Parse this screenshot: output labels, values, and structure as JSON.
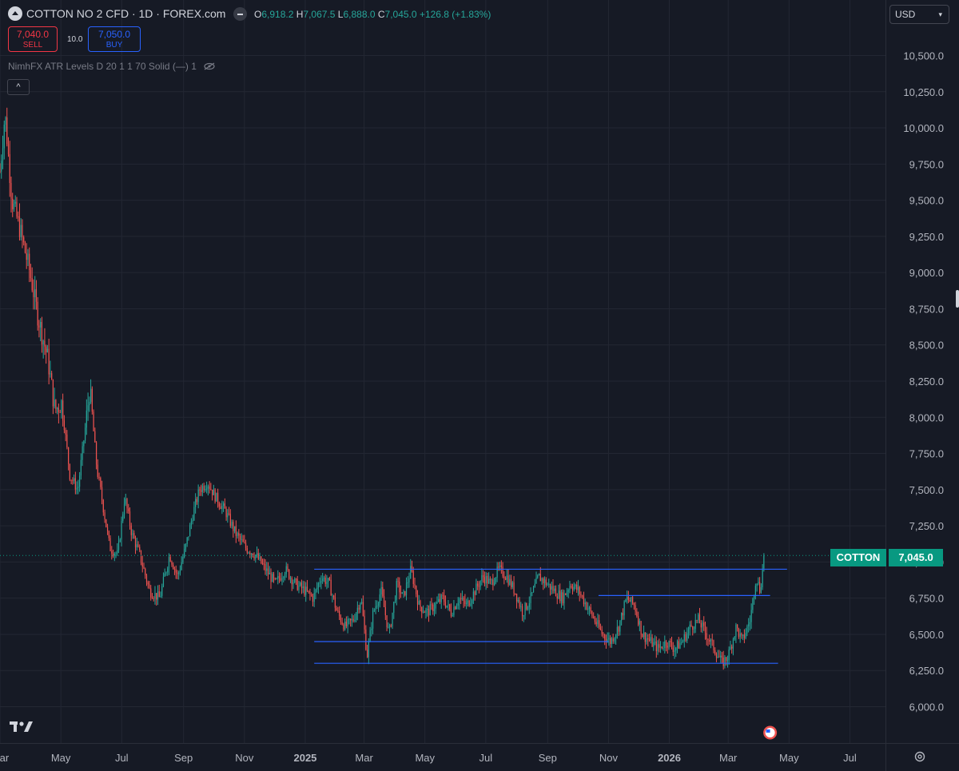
{
  "header": {
    "symbol_title": "COTTON NO 2 CFD · 1D · FOREX.com",
    "ohlc": [
      {
        "key": "O",
        "value": "6,918.2"
      },
      {
        "key": "H",
        "value": "7,067.5"
      },
      {
        "key": "L",
        "value": "6,888.0"
      },
      {
        "key": "C",
        "value": "7,045.0"
      },
      {
        "key": "",
        "value": "+126.8 (+1.83%)"
      }
    ],
    "sell_price": "7,040.0",
    "sell_label": "SELL",
    "spread": "10.0",
    "buy_price": "7,050.0",
    "buy_label": "BUY",
    "indicator_legend": "NimhFX ATR Levels D 20 1 1 70 Solid (—) 1",
    "collapse_icon": "^",
    "currency": "USD"
  },
  "price_label": {
    "name": "COTTON",
    "value": "7,045.0"
  },
  "colors": {
    "background": "#161a25",
    "grid": "#232733",
    "up": "#26a69a",
    "down": "#ef5350",
    "level_line": "#2962ff",
    "last_price": "#089981"
  },
  "chart_data": {
    "type": "candlestick",
    "y_ticks": [
      "6,000.0",
      "6,250.0",
      "6,500.0",
      "6,750.0",
      "7,000.0",
      "7,250.0",
      "7,500.0",
      "7,750.0",
      "8,000.0",
      "8,250.0",
      "8,500.0",
      "8,750.0",
      "9,000.0",
      "9,250.0",
      "9,500.0",
      "9,750.0",
      "10,000.0",
      "10,250.0",
      "10,500.0"
    ],
    "y_tick_values": [
      6000,
      6250,
      6500,
      6750,
      7000,
      7250,
      7500,
      7750,
      8000,
      8250,
      8500,
      8750,
      9000,
      9250,
      9500,
      9750,
      10000,
      10250,
      10500
    ],
    "ylim": [
      5800,
      10650
    ],
    "x_ticks": [
      {
        "label": "Mar",
        "bold": false,
        "day": 0
      },
      {
        "label": "May",
        "bold": false,
        "day": 61
      },
      {
        "label": "Jul",
        "bold": false,
        "day": 122
      },
      {
        "label": "Sep",
        "bold": false,
        "day": 184
      },
      {
        "label": "Nov",
        "bold": false,
        "day": 245
      },
      {
        "label": "2025",
        "bold": true,
        "day": 306
      },
      {
        "label": "Mar",
        "bold": false,
        "day": 365
      },
      {
        "label": "May",
        "bold": false,
        "day": 426
      },
      {
        "label": "Jul",
        "bold": false,
        "day": 487
      },
      {
        "label": "Sep",
        "bold": false,
        "day": 549
      },
      {
        "label": "Nov",
        "bold": false,
        "day": 610
      },
      {
        "label": "2026",
        "bold": true,
        "day": 671
      },
      {
        "label": "Mar",
        "bold": false,
        "day": 730
      },
      {
        "label": "May",
        "bold": false,
        "day": 791
      },
      {
        "label": "Jul",
        "bold": false,
        "day": 852
      }
    ],
    "last_price": 7045,
    "series_path": [
      [
        0,
        9700
      ],
      [
        5,
        10100
      ],
      [
        12,
        9500
      ],
      [
        20,
        9300
      ],
      [
        30,
        9000
      ],
      [
        38,
        8700
      ],
      [
        48,
        8400
      ],
      [
        55,
        8050
      ],
      [
        62,
        8100
      ],
      [
        70,
        7600
      ],
      [
        78,
        7500
      ],
      [
        85,
        7900
      ],
      [
        90,
        8200
      ],
      [
        97,
        7650
      ],
      [
        103,
        7400
      ],
      [
        110,
        7100
      ],
      [
        118,
        7050
      ],
      [
        125,
        7450
      ],
      [
        132,
        7200
      ],
      [
        140,
        7050
      ],
      [
        150,
        6800
      ],
      [
        160,
        6750
      ],
      [
        170,
        7050
      ],
      [
        178,
        6900
      ],
      [
        186,
        7100
      ],
      [
        194,
        7350
      ],
      [
        200,
        7500
      ],
      [
        208,
        7550
      ],
      [
        216,
        7450
      ],
      [
        226,
        7350
      ],
      [
        236,
        7200
      ],
      [
        246,
        7100
      ],
      [
        256,
        7050
      ],
      [
        266,
        6950
      ],
      [
        276,
        6850
      ],
      [
        286,
        6950
      ],
      [
        296,
        6850
      ],
      [
        306,
        6800
      ],
      [
        314,
        6750
      ],
      [
        322,
        6900
      ],
      [
        330,
        6850
      ],
      [
        338,
        6650
      ],
      [
        346,
        6550
      ],
      [
        354,
        6600
      ],
      [
        362,
        6750
      ],
      [
        368,
        6350
      ],
      [
        374,
        6650
      ],
      [
        382,
        6800
      ],
      [
        390,
        6500
      ],
      [
        398,
        6850
      ],
      [
        404,
        6750
      ],
      [
        412,
        6950
      ],
      [
        420,
        6700
      ],
      [
        428,
        6650
      ],
      [
        436,
        6700
      ],
      [
        444,
        6750
      ],
      [
        452,
        6650
      ],
      [
        460,
        6750
      ],
      [
        468,
        6700
      ],
      [
        476,
        6800
      ],
      [
        484,
        6900
      ],
      [
        492,
        6850
      ],
      [
        500,
        6950
      ],
      [
        508,
        6900
      ],
      [
        516,
        6800
      ],
      [
        524,
        6650
      ],
      [
        532,
        6750
      ],
      [
        540,
        6900
      ],
      [
        548,
        6850
      ],
      [
        556,
        6800
      ],
      [
        564,
        6750
      ],
      [
        572,
        6850
      ],
      [
        580,
        6800
      ],
      [
        588,
        6700
      ],
      [
        596,
        6600
      ],
      [
        604,
        6500
      ],
      [
        612,
        6450
      ],
      [
        620,
        6550
      ],
      [
        628,
        6750
      ],
      [
        636,
        6700
      ],
      [
        644,
        6500
      ],
      [
        652,
        6450
      ],
      [
        660,
        6400
      ],
      [
        668,
        6450
      ],
      [
        676,
        6400
      ],
      [
        684,
        6450
      ],
      [
        692,
        6550
      ],
      [
        700,
        6600
      ],
      [
        708,
        6500
      ],
      [
        716,
        6400
      ],
      [
        724,
        6300
      ],
      [
        730,
        6350
      ],
      [
        738,
        6550
      ],
      [
        744,
        6450
      ],
      [
        752,
        6600
      ],
      [
        758,
        6900
      ],
      [
        762,
        6800
      ],
      [
        766,
        7045
      ]
    ],
    "levels": [
      {
        "price": 6950,
        "x_start": 315,
        "x_end": 789
      },
      {
        "price": 6768,
        "x_start": 600,
        "x_end": 772
      },
      {
        "price": 6450,
        "x_start": 315,
        "x_end": 610
      },
      {
        "price": 6300,
        "x_start": 315,
        "x_end": 780
      }
    ],
    "event_marker_day": 772
  }
}
